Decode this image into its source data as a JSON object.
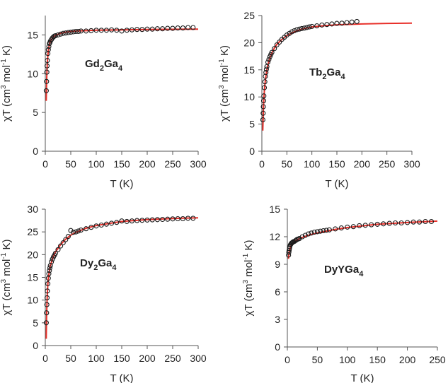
{
  "chart_data": [
    {
      "id": "gd",
      "type": "scatter",
      "compound": {
        "base": "Gd",
        "sub1": "2",
        "mid": "Ga",
        "sub2": "4"
      },
      "xlabel": "T (K)",
      "ylabel": {
        "a": "χT (cm",
        "sup1": "3",
        "b": " mol",
        "sup2": "-1",
        "c": " K)"
      },
      "xlim": [
        0,
        300
      ],
      "ylim": [
        0,
        17.5
      ],
      "xticks": [
        0,
        50,
        100,
        150,
        200,
        250,
        300
      ],
      "yticks": [
        0,
        5,
        10,
        15
      ],
      "grid": false,
      "fit_color": "#e8302a",
      "series": [
        {
          "kind": "fit",
          "x": [
            1.8,
            2.5,
            3,
            4,
            5,
            6,
            8,
            10,
            15,
            20,
            30,
            40,
            50,
            60,
            80,
            100,
            150,
            200,
            250,
            300
          ],
          "y": [
            6.5,
            8.6,
            10.0,
            11.4,
            12.3,
            13.0,
            13.8,
            14.2,
            14.7,
            14.95,
            15.2,
            15.35,
            15.45,
            15.5,
            15.55,
            15.6,
            15.65,
            15.7,
            15.72,
            15.75
          ]
        },
        {
          "kind": "measured",
          "x": [
            2,
            2.5,
            3,
            3.5,
            4,
            5,
            6,
            7,
            8,
            9,
            10,
            12,
            14,
            16,
            18,
            20,
            25,
            30,
            35,
            40,
            45,
            50,
            55,
            60,
            65,
            70,
            80,
            90,
            100,
            110,
            120,
            130,
            140,
            150,
            160,
            170,
            180,
            190,
            200,
            210,
            220,
            230,
            240,
            250,
            260,
            270,
            280,
            290
          ],
          "y": [
            7.8,
            9.0,
            10.2,
            11.0,
            11.7,
            12.6,
            13.1,
            13.5,
            13.9,
            14.0,
            14.2,
            14.4,
            14.6,
            14.75,
            14.85,
            14.9,
            15.0,
            15.1,
            15.2,
            15.25,
            15.3,
            15.35,
            15.4,
            15.45,
            15.45,
            15.5,
            15.5,
            15.55,
            15.6,
            15.6,
            15.6,
            15.65,
            15.6,
            15.5,
            15.6,
            15.65,
            15.7,
            15.7,
            15.75,
            15.75,
            15.8,
            15.8,
            15.85,
            15.85,
            15.9,
            15.9,
            15.95,
            15.95
          ]
        }
      ]
    },
    {
      "id": "tb",
      "type": "scatter",
      "compound": {
        "base": "Tb",
        "sub1": "2",
        "mid": "Ga",
        "sub2": "4"
      },
      "xlabel": "T (K)",
      "ylabel": {
        "a": "χT (cm",
        "sup1": "3",
        "b": " mol",
        "sup2": "-1",
        "c": " K)"
      },
      "xlim": [
        0,
        300
      ],
      "ylim": [
        0,
        25
      ],
      "xticks": [
        0,
        50,
        100,
        150,
        200,
        250,
        300
      ],
      "yticks": [
        0,
        5,
        10,
        15,
        20,
        25
      ],
      "grid": false,
      "fit_color": "#e8302a",
      "series": [
        {
          "kind": "fit",
          "x": [
            1.8,
            2.5,
            3,
            4,
            5,
            6,
            8,
            10,
            12,
            15,
            20,
            25,
            30,
            40,
            50,
            60,
            70,
            80,
            100,
            120,
            150,
            200,
            250,
            300
          ],
          "y": [
            3.8,
            6.0,
            7.4,
            9.6,
            11.0,
            12.2,
            13.8,
            15.0,
            15.9,
            16.9,
            18.1,
            19.0,
            19.7,
            20.6,
            21.3,
            21.8,
            22.2,
            22.5,
            22.9,
            23.1,
            23.3,
            23.45,
            23.55,
            23.6
          ]
        },
        {
          "kind": "measured",
          "x": [
            2,
            2.5,
            3,
            3.5,
            4,
            5,
            6,
            7,
            8,
            9,
            10,
            12,
            14,
            16,
            18,
            20,
            25,
            30,
            35,
            40,
            45,
            50,
            55,
            60,
            65,
            70,
            75,
            80,
            85,
            90,
            95,
            100,
            110,
            120,
            130,
            140,
            150,
            160,
            170,
            180,
            190
          ],
          "y": [
            5.8,
            7.0,
            8.2,
            9.3,
            10.2,
            11.7,
            12.8,
            13.8,
            14.5,
            15.1,
            15.6,
            16.4,
            16.9,
            17.4,
            17.8,
            18.2,
            18.9,
            19.6,
            20.1,
            20.6,
            21.0,
            21.4,
            21.7,
            22.0,
            22.2,
            22.4,
            22.5,
            22.6,
            22.7,
            22.8,
            22.9,
            23.0,
            23.1,
            23.25,
            23.35,
            23.45,
            23.55,
            23.6,
            23.7,
            23.8,
            23.9
          ]
        }
      ]
    },
    {
      "id": "dy",
      "type": "scatter",
      "compound": {
        "base": "Dy",
        "sub1": "2",
        "mid": "Ga",
        "sub2": "4"
      },
      "xlabel": "T (K)",
      "ylabel": {
        "a": "χT (cm",
        "sup1": "3",
        "b": " mol",
        "sup2": "-1",
        "c": " K)"
      },
      "xlim": [
        0,
        300
      ],
      "ylim": [
        0,
        30
      ],
      "xticks": [
        0,
        50,
        100,
        150,
        200,
        250,
        300
      ],
      "yticks": [
        0,
        5,
        10,
        15,
        20,
        25,
        30
      ],
      "grid": false,
      "fit_color": "#e8302a",
      "series": [
        {
          "kind": "fit",
          "x": [
            1.8,
            2.5,
            3,
            4,
            5,
            6,
            8,
            10,
            15,
            20,
            30,
            40,
            50,
            60,
            80,
            100,
            150,
            200,
            250,
            300
          ],
          "y": [
            1.5,
            6.0,
            8.5,
            11.5,
            13.5,
            14.8,
            16.5,
            17.6,
            19.4,
            20.6,
            22.2,
            23.4,
            24.3,
            24.9,
            25.8,
            26.4,
            27.3,
            27.7,
            27.95,
            28.1
          ]
        },
        {
          "kind": "measured",
          "x": [
            2,
            2.5,
            3,
            3.5,
            4,
            5,
            6,
            7,
            8,
            9,
            10,
            12,
            14,
            16,
            18,
            20,
            25,
            30,
            35,
            40,
            45,
            50,
            55,
            60,
            65,
            70,
            80,
            90,
            100,
            110,
            120,
            130,
            140,
            150,
            160,
            170,
            180,
            190,
            200,
            210,
            220,
            230,
            240,
            250,
            260,
            270,
            280,
            290
          ],
          "y": [
            5.0,
            7.2,
            9.0,
            10.5,
            12.0,
            13.6,
            14.8,
            15.8,
            16.5,
            17.1,
            17.6,
            18.4,
            19.0,
            19.5,
            19.9,
            20.3,
            21.1,
            21.9,
            22.6,
            23.3,
            24.0,
            25.3,
            24.9,
            25.0,
            25.2,
            25.4,
            25.7,
            26.0,
            26.3,
            26.5,
            26.7,
            26.9,
            27.1,
            27.4,
            27.3,
            27.4,
            27.5,
            27.55,
            27.6,
            27.65,
            27.7,
            27.75,
            27.8,
            27.85,
            27.9,
            27.9,
            28.0,
            28.0
          ]
        }
      ]
    },
    {
      "id": "dyy",
      "type": "scatter",
      "compound": {
        "base": "DyYGa",
        "sub1": "",
        "mid": "",
        "sub2": "4"
      },
      "xlabel": "T (K)",
      "ylabel": {
        "a": "χT (cm",
        "sup1": "3",
        "b": " mol",
        "sup2": "-1",
        "c": " K)"
      },
      "xlim": [
        0,
        250
      ],
      "ylim": [
        0,
        15
      ],
      "xticks": [
        0,
        50,
        100,
        150,
        200,
        250
      ],
      "yticks": [
        0,
        3,
        6,
        9,
        12,
        15
      ],
      "grid": false,
      "fit_color": "#e8302a",
      "series": [
        {
          "kind": "fit",
          "x": [
            1.8,
            2.5,
            3,
            4,
            5,
            6,
            8,
            10,
            15,
            20,
            30,
            40,
            50,
            60,
            80,
            100,
            150,
            200,
            250
          ],
          "y": [
            9.6,
            10.0,
            10.3,
            10.6,
            10.8,
            11.0,
            11.2,
            11.35,
            11.6,
            11.8,
            12.05,
            12.25,
            12.4,
            12.55,
            12.8,
            13.0,
            13.35,
            13.55,
            13.7
          ]
        },
        {
          "kind": "measured",
          "x": [
            2,
            2.5,
            3,
            3.5,
            4,
            5,
            6,
            7,
            8,
            9,
            10,
            12,
            14,
            16,
            18,
            20,
            25,
            30,
            35,
            40,
            45,
            50,
            55,
            60,
            65,
            70,
            80,
            90,
            100,
            110,
            120,
            130,
            140,
            150,
            160,
            170,
            180,
            190,
            200,
            210,
            220,
            230,
            240
          ],
          "y": [
            10.0,
            10.3,
            10.5,
            10.7,
            10.9,
            11.1,
            11.2,
            11.3,
            11.35,
            11.4,
            11.45,
            11.5,
            11.6,
            11.7,
            11.75,
            11.8,
            12.0,
            12.15,
            12.3,
            12.4,
            12.5,
            12.55,
            12.6,
            12.65,
            12.7,
            12.75,
            12.85,
            12.95,
            13.05,
            13.1,
            13.2,
            13.25,
            13.3,
            13.35,
            13.4,
            13.45,
            13.5,
            13.5,
            13.55,
            13.6,
            13.6,
            13.65,
            13.65
          ]
        }
      ]
    }
  ]
}
